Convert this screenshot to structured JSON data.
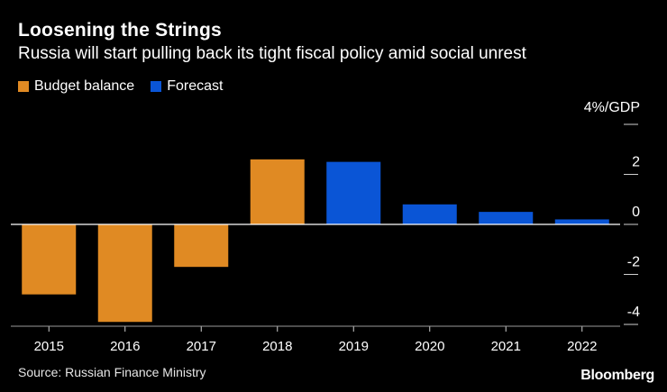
{
  "header": {
    "title": "Loosening the Strings",
    "subtitle": "Russia will start pulling back its tight fiscal policy amid social unrest"
  },
  "legend": [
    {
      "label": "Budget balance",
      "color": "#E08A23"
    },
    {
      "label": "Forecast",
      "color": "#0A55D6"
    }
  ],
  "footer": {
    "source": "Source: Russian Finance Ministry",
    "brand": "Bloomberg"
  },
  "chart_data": {
    "type": "bar",
    "title": "Loosening the Strings",
    "subtitle": "Russia will start pulling back its tight fiscal policy amid social unrest",
    "unit_label": "4%/GDP",
    "categories": [
      "2015",
      "2016",
      "2017",
      "2018",
      "2019",
      "2020",
      "2021",
      "2022"
    ],
    "series": [
      {
        "name": "Budget balance",
        "color": "#E08A23",
        "values": [
          -2.8,
          -3.9,
          -1.7,
          2.6,
          null,
          null,
          null,
          null
        ]
      },
      {
        "name": "Forecast",
        "color": "#0A55D6",
        "values": [
          null,
          null,
          null,
          null,
          2.5,
          0.8,
          0.5,
          0.2
        ]
      }
    ],
    "ylim": [
      -4,
      4
    ],
    "yticks": [
      4,
      2,
      0,
      -2,
      -4
    ],
    "ytick_labels": [
      "",
      "2",
      "0",
      "-2",
      "-4"
    ],
    "axis_position": "right",
    "grid": false
  }
}
